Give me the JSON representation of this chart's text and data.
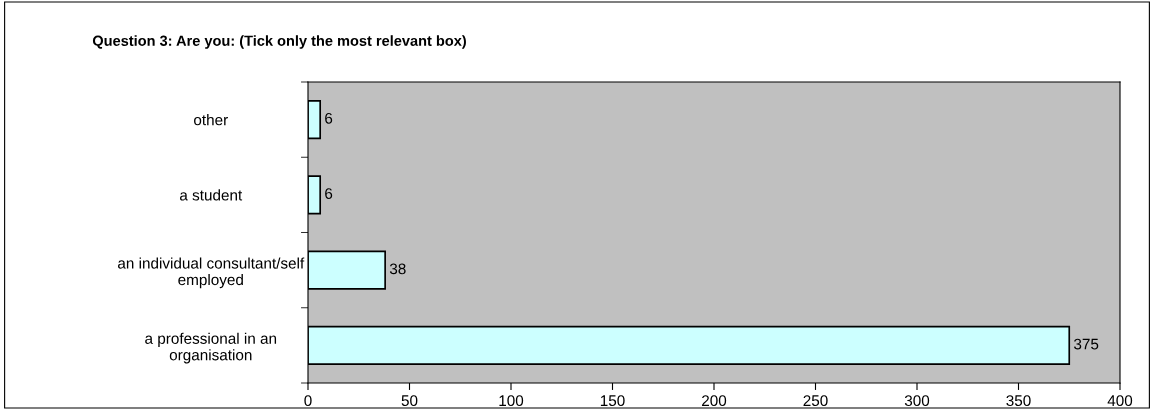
{
  "chart_data": {
    "type": "bar",
    "orientation": "horizontal",
    "title": "Question 3: Are you: (Tick only the most relevant box)",
    "categories": [
      "other",
      "a student",
      "an individual consultant/self employed",
      "a professional in an organisation"
    ],
    "values": [
      6,
      6,
      38,
      375
    ],
    "color": "#ccffff",
    "data_labels": true,
    "grid": false,
    "legend": false,
    "xlim": [
      0,
      400
    ],
    "xticks": [
      0,
      50,
      100,
      150,
      200,
      250,
      300,
      350,
      400
    ]
  }
}
